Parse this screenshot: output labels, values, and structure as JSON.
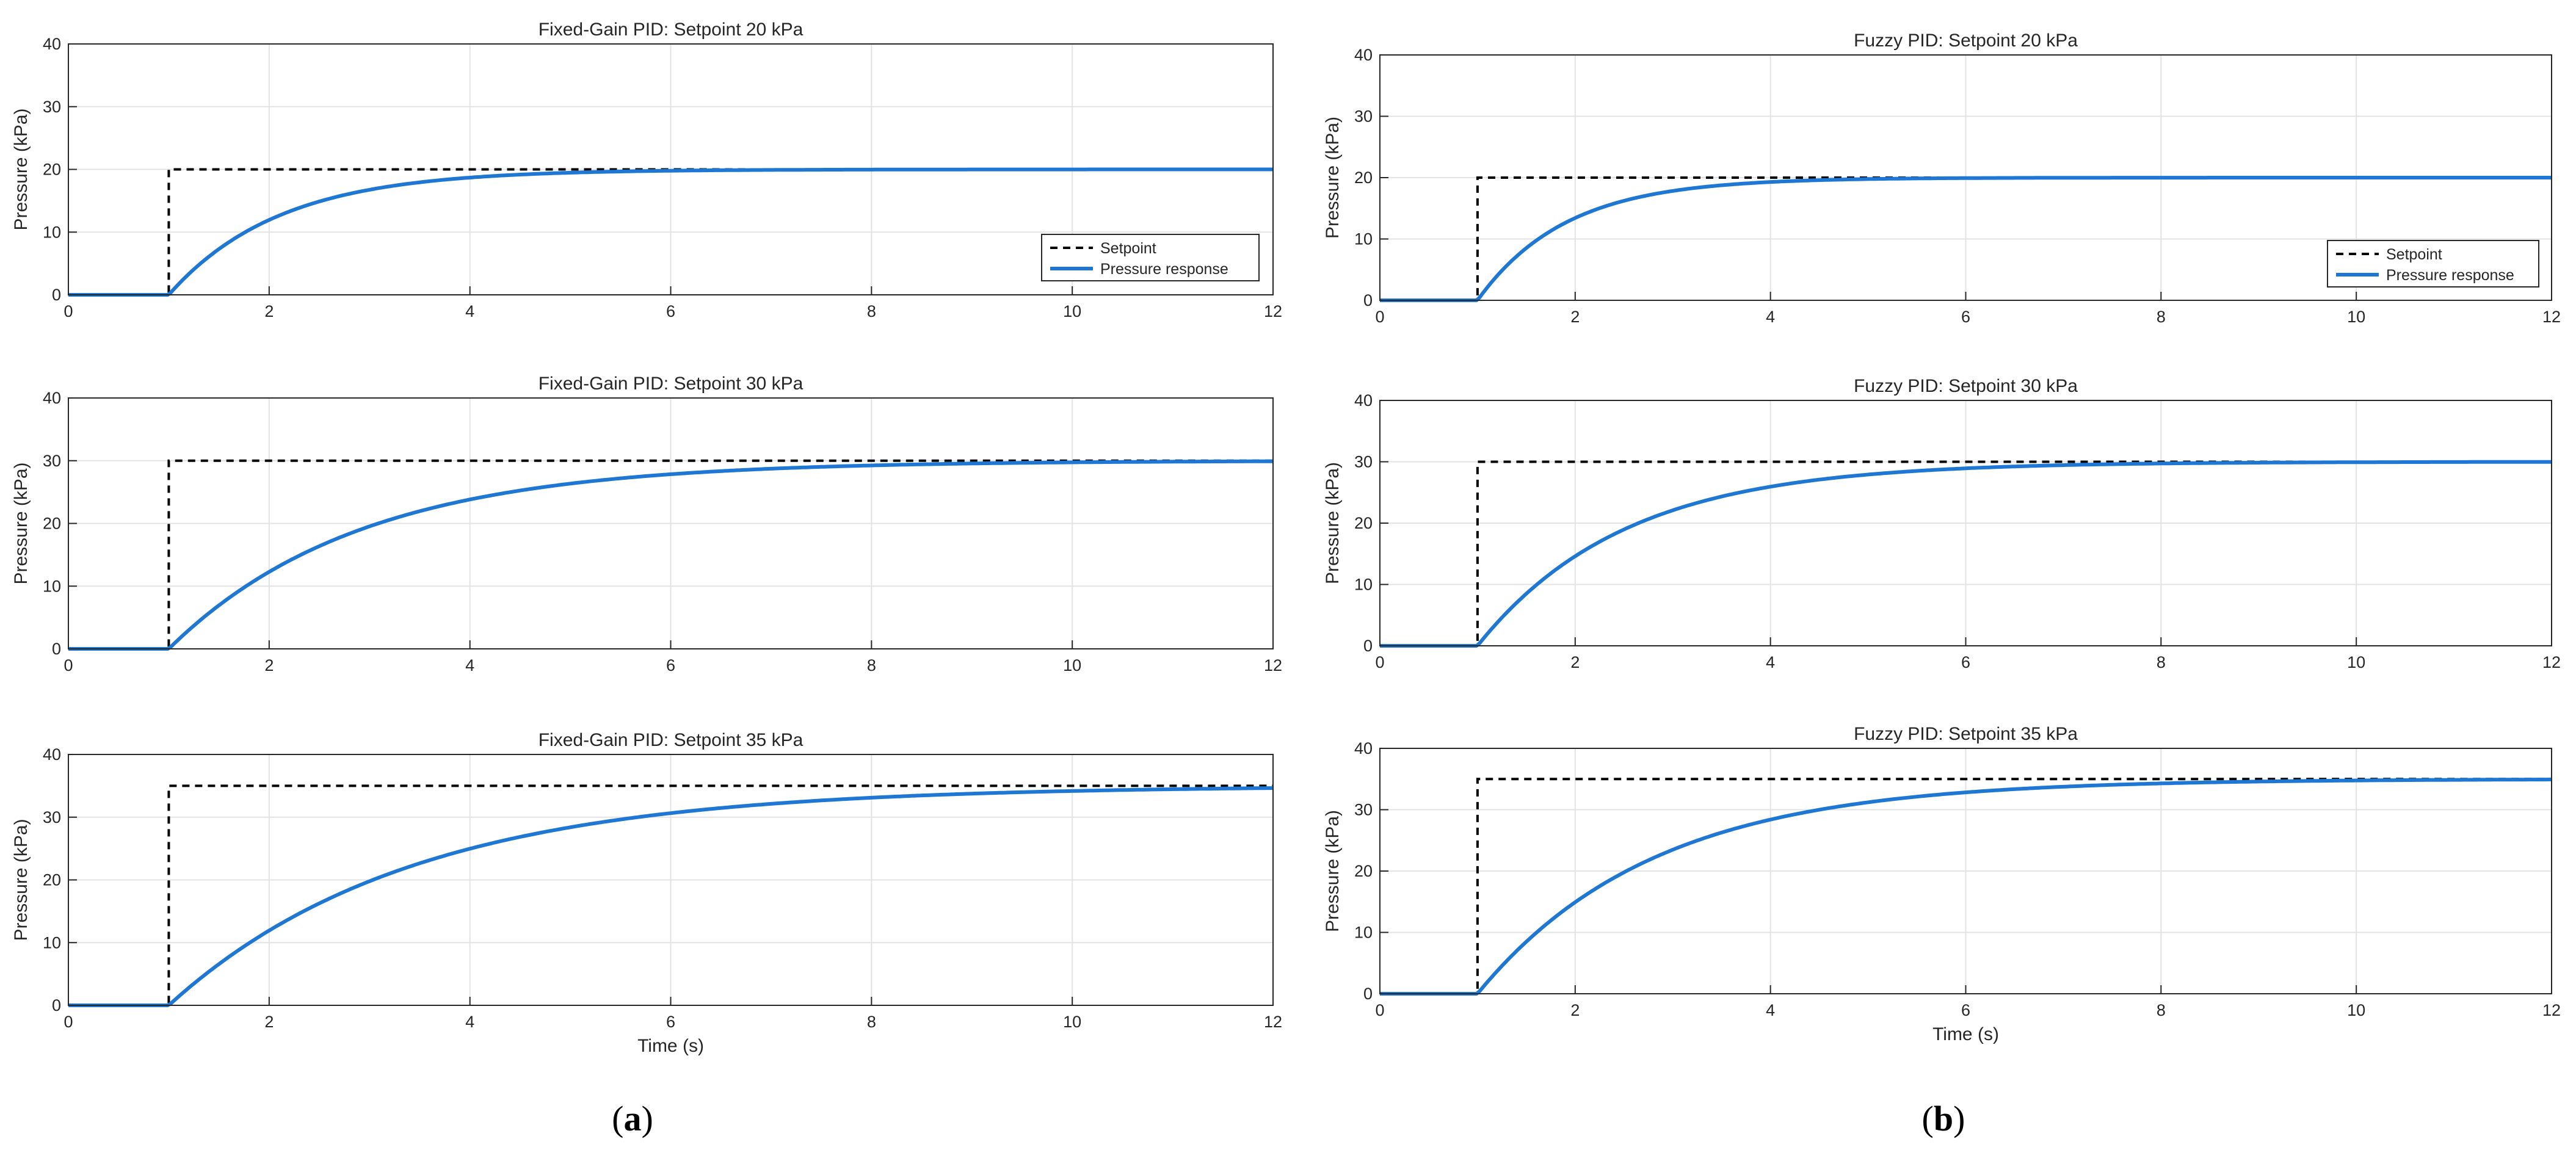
{
  "panel_labels": [
    {
      "open": "(",
      "letter": "a",
      "close": ")"
    },
    {
      "open": "(",
      "letter": "b",
      "close": ")"
    }
  ],
  "colors": {
    "setpoint": "#000000",
    "response": "#1f77d4",
    "grid": "#e3e3e3",
    "axes": "#262626"
  },
  "chart_data": [
    {
      "type": "line",
      "title": "Fixed-Gain PID: Setpoint 20 kPa",
      "xlabel": "",
      "ylabel": "Pressure (kPa)",
      "xlim": [
        0,
        12
      ],
      "ylim": [
        0,
        40
      ],
      "xticks": [
        0,
        2,
        4,
        6,
        8,
        10,
        12
      ],
      "yticks": [
        0,
        10,
        20,
        30,
        40
      ],
      "grid": true,
      "legend": "lower-right",
      "step_time": 1,
      "setpoint": 20,
      "tau": 1.1,
      "series": [
        {
          "name": "Setpoint",
          "style": "dashed",
          "x": [
            0,
            1,
            1,
            12
          ],
          "y": [
            0,
            0,
            20,
            20
          ]
        },
        {
          "name": "Pressure response",
          "style": "solid",
          "x": [
            0,
            1,
            1.5,
            2,
            3,
            4,
            5,
            6,
            8,
            10,
            12
          ],
          "y": [
            0,
            0,
            7.3,
            11.9,
            16.7,
            18.8,
            19.5,
            19.8,
            20.0,
            20.0,
            20.0
          ]
        }
      ]
    },
    {
      "type": "line",
      "title": "Fixed-Gain PID: Setpoint 30 kPa",
      "xlabel": "",
      "ylabel": "Pressure (kPa)",
      "xlim": [
        0,
        12
      ],
      "ylim": [
        0,
        40
      ],
      "xticks": [
        0,
        2,
        4,
        6,
        8,
        10,
        12
      ],
      "yticks": [
        0,
        10,
        20,
        30,
        40
      ],
      "grid": true,
      "legend": "none",
      "step_time": 1,
      "setpoint": 30,
      "tau": 1.9,
      "series": [
        {
          "name": "Setpoint",
          "style": "dashed",
          "x": [
            0,
            1,
            1,
            12
          ],
          "y": [
            0,
            0,
            30,
            30
          ]
        },
        {
          "name": "Pressure response",
          "style": "solid",
          "x": [
            0,
            1,
            2,
            3,
            4,
            5,
            6,
            8,
            10,
            12
          ],
          "y": [
            0,
            0,
            12.2,
            19.4,
            24.0,
            26.6,
            28.0,
            29.4,
            29.9,
            30.0
          ]
        }
      ]
    },
    {
      "type": "line",
      "title": "Fixed-Gain PID: Setpoint 35 kPa",
      "xlabel": "Time (s)",
      "ylabel": "Pressure (kPa)",
      "xlim": [
        0,
        12
      ],
      "ylim": [
        0,
        40
      ],
      "xticks": [
        0,
        2,
        4,
        6,
        8,
        10,
        12
      ],
      "yticks": [
        0,
        10,
        20,
        30,
        40
      ],
      "grid": true,
      "legend": "none",
      "step_time": 1,
      "setpoint": 35,
      "tau": 2.4,
      "series": [
        {
          "name": "Setpoint",
          "style": "dashed",
          "x": [
            0,
            1,
            1,
            12
          ],
          "y": [
            0,
            0,
            35,
            35
          ]
        },
        {
          "name": "Pressure response",
          "style": "solid",
          "x": [
            0,
            1,
            2,
            3,
            4,
            5,
            6,
            8,
            10,
            12
          ],
          "y": [
            0,
            0,
            12.5,
            20.6,
            25.7,
            29.0,
            31.2,
            33.6,
            34.5,
            34.8
          ]
        }
      ]
    },
    {
      "type": "line",
      "title": "Fuzzy PID: Setpoint 20 kPa",
      "xlabel": "",
      "ylabel": "Pressure (kPa)",
      "xlim": [
        0,
        12
      ],
      "ylim": [
        0,
        40
      ],
      "xticks": [
        0,
        2,
        4,
        6,
        8,
        10,
        12
      ],
      "yticks": [
        0,
        10,
        20,
        30,
        40
      ],
      "grid": true,
      "legend": "lower-right",
      "step_time": 1,
      "setpoint": 20,
      "tau": 0.9,
      "series": [
        {
          "name": "Setpoint",
          "style": "dashed",
          "x": [
            0,
            1,
            1,
            12
          ],
          "y": [
            0,
            0,
            20,
            20
          ]
        },
        {
          "name": "Pressure response",
          "style": "solid",
          "x": [
            0,
            1,
            1.5,
            2,
            3,
            4,
            5,
            6,
            8,
            10,
            12
          ],
          "y": [
            0,
            0,
            8.5,
            13.4,
            17.9,
            19.3,
            19.8,
            19.9,
            20.0,
            20.0,
            20.0
          ]
        }
      ]
    },
    {
      "type": "line",
      "title": "Fuzzy PID: Setpoint 30 kPa",
      "xlabel": "",
      "ylabel": "Pressure (kPa)",
      "xlim": [
        0,
        12
      ],
      "ylim": [
        0,
        40
      ],
      "xticks": [
        0,
        2,
        4,
        6,
        8,
        10,
        12
      ],
      "yticks": [
        0,
        10,
        20,
        30,
        40
      ],
      "grid": true,
      "legend": "none",
      "step_time": 1,
      "setpoint": 30,
      "tau": 1.5,
      "series": [
        {
          "name": "Setpoint",
          "style": "dashed",
          "x": [
            0,
            1,
            1,
            12
          ],
          "y": [
            0,
            0,
            30,
            30
          ]
        },
        {
          "name": "Pressure response",
          "style": "solid",
          "x": [
            0,
            1,
            2,
            3,
            4,
            5,
            6,
            8,
            10,
            12
          ],
          "y": [
            0,
            0,
            14.6,
            22.1,
            26.0,
            28.0,
            29.0,
            29.7,
            29.9,
            30.0
          ]
        }
      ]
    },
    {
      "type": "line",
      "title": "Fuzzy PID: Setpoint 35 kPa",
      "xlabel": "Time (s)",
      "ylabel": "Pressure (kPa)",
      "xlim": [
        0,
        12
      ],
      "ylim": [
        0,
        40
      ],
      "xticks": [
        0,
        2,
        4,
        6,
        8,
        10,
        12
      ],
      "yticks": [
        0,
        10,
        20,
        30,
        40
      ],
      "grid": true,
      "legend": "none",
      "step_time": 1,
      "setpoint": 35,
      "tau": 1.8,
      "series": [
        {
          "name": "Setpoint",
          "style": "dashed",
          "x": [
            0,
            1,
            1,
            12
          ],
          "y": [
            0,
            0,
            35,
            35
          ]
        },
        {
          "name": "Pressure response",
          "style": "solid",
          "x": [
            0,
            1,
            2,
            3,
            4,
            5,
            6,
            8,
            10,
            12
          ],
          "y": [
            0,
            0,
            14.6,
            23.1,
            28.1,
            31.0,
            32.7,
            34.1,
            34.7,
            34.9
          ]
        }
      ]
    }
  ]
}
